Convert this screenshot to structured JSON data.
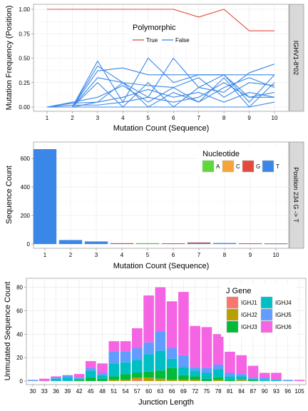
{
  "chart_data": [
    {
      "type": "line",
      "strip_label": "IGHV1-8*02",
      "xlabel": "Mutation Count (Sequence)",
      "ylabel": "Mutation Frequency (Position)",
      "xlim": [
        1,
        10
      ],
      "ylim": [
        0,
        1
      ],
      "x_ticks": [
        "1",
        "2",
        "3",
        "4",
        "5",
        "6",
        "7",
        "8",
        "9",
        "10"
      ],
      "y_ticks": [
        "0.00",
        "0.25",
        "0.50",
        "0.75",
        "1.00"
      ],
      "legend": {
        "title": "Polymorphic",
        "placement": "top-center",
        "entries": [
          {
            "label": "True",
            "color": "#e24a3b"
          },
          {
            "label": "False",
            "color": "#3a87e8"
          }
        ]
      },
      "series": [
        {
          "name": "True",
          "color": "#e24a3b",
          "x": [
            1,
            2,
            3,
            4,
            5,
            6,
            7,
            8,
            9,
            10
          ],
          "values": [
            1.0,
            1.0,
            1.0,
            1.0,
            1.0,
            1.0,
            0.92,
            1.0,
            0.78,
            0.78
          ]
        },
        {
          "name": "False",
          "color": "#3a87e8",
          "x": [
            1,
            2,
            3,
            4,
            5,
            6,
            7,
            8,
            9,
            10
          ],
          "values": [
            0,
            0,
            0.47,
            0.05,
            0.5,
            0.25,
            0.33,
            0.33,
            0.1,
            0.1
          ]
        },
        {
          "name": "False",
          "color": "#3a87e8",
          "x": [
            1,
            2,
            3,
            4,
            5,
            6,
            7,
            8,
            9,
            10
          ],
          "values": [
            0,
            0,
            0.42,
            0.25,
            0.1,
            0.5,
            0.2,
            0.15,
            0.35,
            0.44
          ]
        },
        {
          "name": "False",
          "color": "#3a87e8",
          "x": [
            1,
            2,
            3,
            4,
            5,
            6,
            7,
            8,
            9,
            10
          ],
          "values": [
            0,
            0,
            0.37,
            0.4,
            0.33,
            0.33,
            0.33,
            0.33,
            0.33,
            0.33
          ]
        },
        {
          "name": "False",
          "color": "#3a87e8",
          "x": [
            1,
            2,
            3,
            4,
            5,
            6,
            7,
            8,
            9,
            10
          ],
          "values": [
            0,
            0,
            0.3,
            0.25,
            0.22,
            0.2,
            0.3,
            0.1,
            0.25,
            0.22
          ]
        },
        {
          "name": "False",
          "color": "#3a87e8",
          "x": [
            1,
            2,
            3,
            4,
            5,
            6,
            7,
            8,
            9,
            10
          ],
          "values": [
            0,
            0,
            0.25,
            0.0,
            0.25,
            0.0,
            0.2,
            0.33,
            0.05,
            0.33
          ]
        },
        {
          "name": "False",
          "color": "#3a87e8",
          "x": [
            1,
            2,
            3,
            4,
            5,
            6,
            7,
            8,
            9,
            10
          ],
          "values": [
            0,
            0.05,
            0.1,
            0.22,
            0.05,
            0.2,
            0.05,
            0.2,
            0.3,
            0.2
          ]
        },
        {
          "name": "False",
          "color": "#3a87e8",
          "x": [
            1,
            2,
            3,
            4,
            5,
            6,
            7,
            8,
            9,
            10
          ],
          "values": [
            0,
            0.04,
            0.05,
            0.1,
            0.18,
            0.1,
            0.15,
            0.05,
            0.15,
            0.1
          ]
        },
        {
          "name": "False",
          "color": "#3a87e8",
          "x": [
            1,
            2,
            3,
            4,
            5,
            6,
            7,
            8,
            9,
            10
          ],
          "values": [
            0,
            0.02,
            0.02,
            0.05,
            0.1,
            0.05,
            0.1,
            0.25,
            0.1,
            0.15
          ]
        },
        {
          "name": "False",
          "color": "#3a87e8",
          "x": [
            1,
            2,
            3,
            4,
            5,
            6,
            7,
            8,
            9,
            10
          ],
          "values": [
            0,
            0,
            0.0,
            0.0,
            0.0,
            0.0,
            0.0,
            0.0,
            0.0,
            0.05
          ]
        },
        {
          "name": "False",
          "color": "#3a87e8",
          "x": [
            1,
            2,
            3,
            4,
            5,
            6,
            7,
            8,
            9,
            10
          ],
          "values": [
            0,
            0,
            0.05,
            0.25,
            0.0,
            0.15,
            0.05,
            0.3,
            0.0,
            0.25
          ]
        }
      ]
    },
    {
      "type": "bar",
      "strip_label": "Position 234 G -> T",
      "xlabel": "Mutation Count (Sequence)",
      "ylabel": "Sequence Count",
      "ylim": [
        0,
        690
      ],
      "y_ticks": [
        "0",
        "200",
        "400",
        "600"
      ],
      "categories": [
        "1",
        "2",
        "3",
        "4",
        "5",
        "6",
        "7",
        "8",
        "9",
        "10"
      ],
      "legend": {
        "title": "Nucleotide",
        "placement": "top-right",
        "entries": [
          {
            "label": "A",
            "color": "#5fd93a"
          },
          {
            "label": "C",
            "color": "#f5a53c"
          },
          {
            "label": "G",
            "color": "#e24a3b"
          },
          {
            "label": "T",
            "color": "#3a87e8"
          }
        ]
      },
      "series": [
        {
          "name": "T",
          "color": "#3a87e8",
          "values": [
            665,
            28,
            18,
            5,
            4,
            4,
            10,
            7,
            4,
            3
          ]
        },
        {
          "name": "G",
          "color": "#e24a3b",
          "values": [
            0,
            0,
            0,
            1,
            1,
            1,
            1,
            0,
            1,
            1
          ]
        },
        {
          "name": "A",
          "color": "#5fd93a",
          "values": [
            0,
            0,
            0,
            0,
            1,
            0,
            0,
            0,
            0,
            0
          ]
        }
      ]
    },
    {
      "type": "bar",
      "stacked": true,
      "xlabel": "Junction Length",
      "ylabel": "Unmutated Sequence Count",
      "ylim": [
        0,
        84
      ],
      "y_ticks": [
        "0",
        "20",
        "40",
        "60",
        "80"
      ],
      "categories": [
        "30",
        "33",
        "36",
        "39",
        "42",
        "45",
        "48",
        "51",
        "54",
        "57",
        "60",
        "63",
        "66",
        "69",
        "72",
        "75",
        "78",
        "81",
        "84",
        "87",
        "90",
        "93",
        "96",
        "105"
      ],
      "legend": {
        "title": "J Gene",
        "placement": "top-right",
        "entries": [
          {
            "label": "IGHJ1",
            "color": "#f8766d"
          },
          {
            "label": "IGHJ2",
            "color": "#b79f00"
          },
          {
            "label": "IGHJ3",
            "color": "#00ba38"
          },
          {
            "label": "IGHJ4",
            "color": "#00bfc4"
          },
          {
            "label": "IGHJ5",
            "color": "#619cff"
          },
          {
            "label": "IGHJ6",
            "color": "#f564e3"
          }
        ]
      },
      "series": [
        {
          "name": "IGHJ1",
          "color": "#f8766d",
          "values": [
            0,
            0,
            0,
            0,
            0,
            0,
            0,
            0,
            0,
            1,
            0,
            0,
            0,
            0,
            0,
            0,
            0,
            0,
            0,
            0,
            0,
            0,
            0,
            0
          ]
        },
        {
          "name": "IGHJ2",
          "color": "#b79f00",
          "values": [
            0,
            0,
            0,
            0,
            0,
            0,
            0,
            1,
            1,
            2,
            3,
            2,
            1,
            1,
            1,
            0,
            1,
            0,
            1,
            0,
            0,
            0,
            0,
            0
          ]
        },
        {
          "name": "IGHJ3",
          "color": "#00ba38",
          "values": [
            0,
            0,
            0,
            0,
            1,
            3,
            2,
            3,
            5,
            4,
            5,
            7,
            10,
            4,
            3,
            2,
            2,
            1,
            0,
            1,
            0,
            0,
            0,
            0
          ]
        },
        {
          "name": "IGHJ4",
          "color": "#00bfc4",
          "values": [
            0,
            0,
            2,
            3,
            1,
            6,
            3,
            11,
            10,
            11,
            15,
            17,
            8,
            7,
            5,
            5,
            7,
            3,
            3,
            1,
            1,
            1,
            0,
            0
          ]
        },
        {
          "name": "IGHJ5",
          "color": "#619cff",
          "values": [
            1,
            0,
            1,
            2,
            1,
            2,
            2,
            10,
            9,
            10,
            10,
            16,
            9,
            10,
            3,
            4,
            4,
            3,
            2,
            1,
            2,
            0,
            1,
            0
          ]
        },
        {
          "name": "IGHJ6",
          "color": "#f564e3",
          "values": [
            0,
            2,
            1,
            0,
            3,
            6,
            8,
            9,
            9,
            17,
            40,
            38,
            40,
            54,
            35,
            35,
            26,
            18,
            16,
            10,
            4,
            6,
            0,
            1
          ]
        }
      ]
    }
  ]
}
